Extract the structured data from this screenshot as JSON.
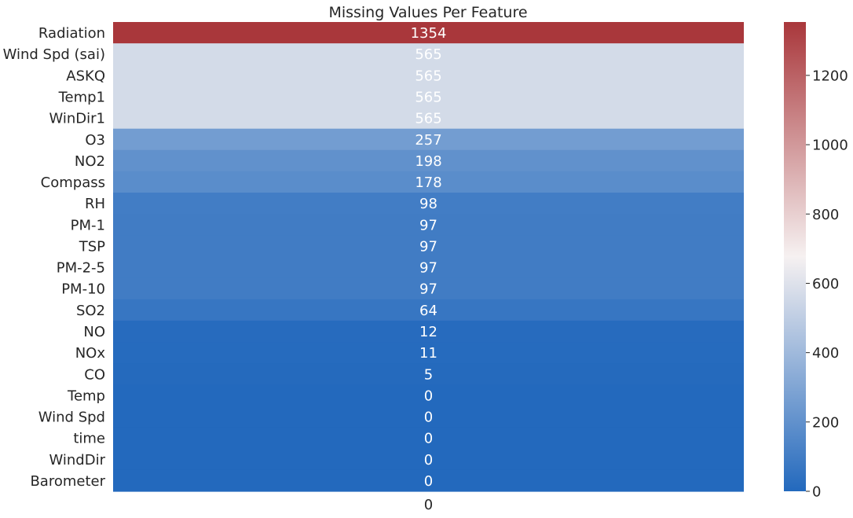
{
  "chart_data": {
    "type": "heatmap",
    "title": "Missing Values Per Feature",
    "row_labels": [
      "Radiation",
      "Wind Spd (sai)",
      "ASKQ",
      "Temp1",
      "WinDir1",
      "O3",
      "NO2",
      "Compass",
      "RH",
      "PM-1",
      "TSP",
      "PM-2-5",
      "PM-10",
      "SO2",
      "NO",
      "NOx",
      "CO",
      "Temp",
      "Wind Spd",
      "time",
      "WindDir",
      "Barometer"
    ],
    "column_labels": [
      "0"
    ],
    "values": [
      1354,
      565,
      565,
      565,
      565,
      257,
      198,
      178,
      98,
      97,
      97,
      97,
      97,
      64,
      12,
      11,
      5,
      0,
      0,
      0,
      0,
      0
    ],
    "colorbar": {
      "range": [
        0,
        1354
      ],
      "ticks": [
        0,
        200,
        400,
        600,
        800,
        1000,
        1200
      ],
      "colors": [
        "#2369bd",
        "#f6f1f1",
        "#a9373b"
      ]
    },
    "grid": false
  }
}
